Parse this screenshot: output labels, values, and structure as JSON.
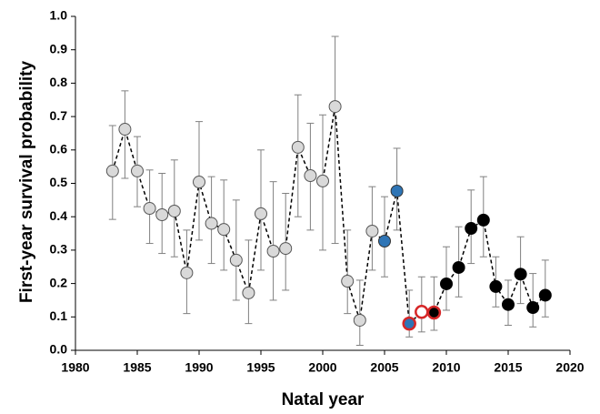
{
  "chart_data": {
    "type": "line",
    "x_label": "Natal year",
    "y_label": "First-year survival probability",
    "x": [
      1983,
      1984,
      1985,
      1986,
      1987,
      1988,
      1989,
      1990,
      1991,
      1992,
      1993,
      1994,
      1995,
      1996,
      1997,
      1998,
      1999,
      2000,
      2001,
      2002,
      2003,
      2004,
      2005,
      2006,
      2007,
      2008,
      2009,
      2010,
      2011,
      2012,
      2013,
      2014,
      2015,
      2016,
      2017,
      2018
    ],
    "values": [
      0.537,
      0.662,
      0.537,
      0.425,
      0.406,
      0.417,
      0.232,
      0.504,
      0.38,
      0.362,
      0.27,
      0.172,
      0.409,
      0.297,
      0.305,
      0.608,
      0.523,
      0.507,
      0.73,
      0.207,
      0.09,
      0.357,
      0.327,
      0.477,
      0.08,
      0.115,
      0.113,
      0.199,
      0.248,
      0.365,
      0.39,
      0.191,
      0.137,
      0.228,
      0.128,
      0.165
    ],
    "lower": [
      0.392,
      0.515,
      0.43,
      0.32,
      0.29,
      0.28,
      0.11,
      0.33,
      0.26,
      0.24,
      0.15,
      0.08,
      0.24,
      0.15,
      0.18,
      0.4,
      0.36,
      0.3,
      0.32,
      0.11,
      0.015,
      0.24,
      0.22,
      0.36,
      0.04,
      0.055,
      0.06,
      0.12,
      0.16,
      0.26,
      0.28,
      0.13,
      0.075,
      0.14,
      0.07,
      0.1
    ],
    "upper": [
      0.673,
      0.777,
      0.64,
      0.54,
      0.53,
      0.57,
      0.36,
      0.685,
      0.52,
      0.51,
      0.45,
      0.33,
      0.6,
      0.505,
      0.47,
      0.765,
      0.68,
      0.705,
      0.94,
      0.36,
      0.21,
      0.49,
      0.46,
      0.605,
      0.18,
      0.22,
      0.22,
      0.31,
      0.37,
      0.48,
      0.52,
      0.28,
      0.21,
      0.34,
      0.23,
      0.27
    ],
    "point_fills": [
      "#d9d9d9",
      "#d9d9d9",
      "#d9d9d9",
      "#d9d9d9",
      "#d9d9d9",
      "#d9d9d9",
      "#d9d9d9",
      "#d9d9d9",
      "#d9d9d9",
      "#d9d9d9",
      "#d9d9d9",
      "#d9d9d9",
      "#d9d9d9",
      "#d9d9d9",
      "#d9d9d9",
      "#d9d9d9",
      "#d9d9d9",
      "#d9d9d9",
      "#d9d9d9",
      "#d9d9d9",
      "#d9d9d9",
      "#d9d9d9",
      "#2e75b6",
      "#2e75b6",
      "#2e75b6",
      "#ffffff",
      "#000000",
      "#000000",
      "#000000",
      "#000000",
      "#000000",
      "#000000",
      "#000000",
      "#000000",
      "#000000",
      "#000000"
    ],
    "point_edges": [
      "#555555",
      "#555555",
      "#555555",
      "#555555",
      "#555555",
      "#555555",
      "#555555",
      "#555555",
      "#555555",
      "#555555",
      "#555555",
      "#555555",
      "#555555",
      "#555555",
      "#555555",
      "#555555",
      "#555555",
      "#555555",
      "#555555",
      "#555555",
      "#555555",
      "#555555",
      "#333333",
      "#333333",
      "#d62728",
      "#d62728",
      "#d62728",
      "#000000",
      "#000000",
      "#000000",
      "#000000",
      "#000000",
      "#000000",
      "#000000",
      "#000000",
      "#000000"
    ],
    "line_color": "#000000",
    "line_dash": true,
    "error_color": "#808080",
    "xlim": [
      1980,
      2020
    ],
    "xticks": [
      1980,
      1985,
      1990,
      1995,
      2000,
      2005,
      2010,
      2015,
      2020
    ],
    "ylim": [
      0,
      1
    ],
    "yticks": [
      {
        "value": 0,
        "label": "0.0"
      },
      0.1,
      0.2,
      0.3,
      0.4,
      0.5,
      0.6,
      0.7,
      0.8,
      0.9,
      {
        "value": 1,
        "label": "1.0"
      }
    ]
  }
}
